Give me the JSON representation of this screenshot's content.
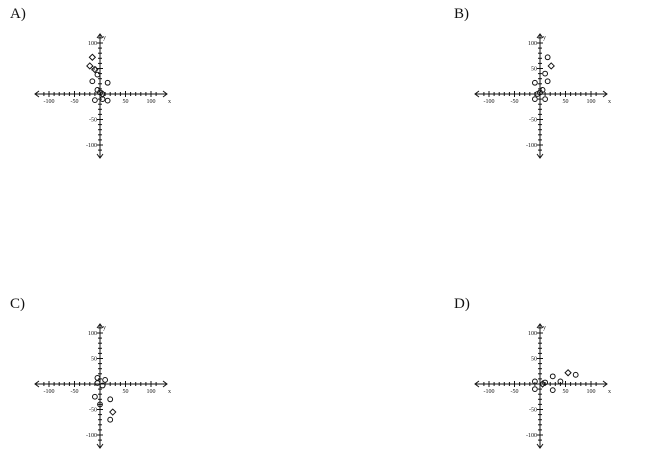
{
  "chart_data": [
    {
      "type": "scatter",
      "label": "A)",
      "xlabel": "x",
      "ylabel": "y",
      "xlim": [
        -120,
        120
      ],
      "ylim": [
        -120,
        120
      ],
      "tick_values": [
        -100,
        -50,
        50,
        100
      ],
      "points": [
        {
          "x": -15,
          "y": 72,
          "m": "diamond"
        },
        {
          "x": -20,
          "y": 55,
          "m": "diamond"
        },
        {
          "x": -10,
          "y": 48,
          "m": "diamond"
        },
        {
          "x": -5,
          "y": 38,
          "m": "circle"
        },
        {
          "x": -15,
          "y": 25,
          "m": "circle"
        },
        {
          "x": 15,
          "y": 22,
          "m": "circle"
        },
        {
          "x": -5,
          "y": 8,
          "m": "circle"
        },
        {
          "x": 0,
          "y": 3,
          "m": "circle"
        },
        {
          "x": 5,
          "y": 0,
          "m": "diamond"
        },
        {
          "x": -10,
          "y": -12,
          "m": "circle"
        },
        {
          "x": 5,
          "y": -10,
          "m": "circle"
        },
        {
          "x": 15,
          "y": -13,
          "m": "circle"
        }
      ]
    },
    {
      "type": "scatter",
      "label": "B)",
      "xlabel": "x",
      "ylabel": "y",
      "xlim": [
        -120,
        120
      ],
      "ylim": [
        -120,
        120
      ],
      "tick_values": [
        -100,
        -50,
        50,
        100
      ],
      "points": [
        {
          "x": 15,
          "y": 72,
          "m": "circle"
        },
        {
          "x": 22,
          "y": 55,
          "m": "diamond"
        },
        {
          "x": 10,
          "y": 40,
          "m": "circle"
        },
        {
          "x": 15,
          "y": 25,
          "m": "circle"
        },
        {
          "x": -10,
          "y": 22,
          "m": "circle"
        },
        {
          "x": 5,
          "y": 8,
          "m": "circle"
        },
        {
          "x": 0,
          "y": 3,
          "m": "circle"
        },
        {
          "x": -5,
          "y": 0,
          "m": "circle"
        },
        {
          "x": -10,
          "y": -10,
          "m": "circle"
        },
        {
          "x": 10,
          "y": -10,
          "m": "circle"
        }
      ]
    },
    {
      "type": "scatter",
      "label": "C)",
      "xlabel": "x",
      "ylabel": "y",
      "xlim": [
        -120,
        120
      ],
      "ylim": [
        -120,
        120
      ],
      "tick_values": [
        -100,
        -50,
        50,
        100
      ],
      "points": [
        {
          "x": -5,
          "y": 12,
          "m": "circle"
        },
        {
          "x": 10,
          "y": 8,
          "m": "circle"
        },
        {
          "x": -5,
          "y": 2,
          "m": "circle"
        },
        {
          "x": 5,
          "y": -3,
          "m": "circle"
        },
        {
          "x": -10,
          "y": -25,
          "m": "circle"
        },
        {
          "x": 20,
          "y": -30,
          "m": "circle"
        },
        {
          "x": 0,
          "y": -40,
          "m": "circle"
        },
        {
          "x": 25,
          "y": -55,
          "m": "diamond"
        },
        {
          "x": 20,
          "y": -70,
          "m": "circle"
        }
      ]
    },
    {
      "type": "scatter",
      "label": "D)",
      "xlabel": "x",
      "ylabel": "y",
      "xlim": [
        -120,
        120
      ],
      "ylim": [
        -120,
        120
      ],
      "tick_values": [
        -100,
        -50,
        50,
        100
      ],
      "points": [
        {
          "x": 55,
          "y": 22,
          "m": "diamond"
        },
        {
          "x": 70,
          "y": 18,
          "m": "circle"
        },
        {
          "x": 25,
          "y": 15,
          "m": "circle"
        },
        {
          "x": 40,
          "y": 5,
          "m": "circle"
        },
        {
          "x": -10,
          "y": 5,
          "m": "circle"
        },
        {
          "x": 10,
          "y": 3,
          "m": "circle"
        },
        {
          "x": 5,
          "y": 0,
          "m": "diamond"
        },
        {
          "x": -10,
          "y": -10,
          "m": "circle"
        },
        {
          "x": 25,
          "y": -12,
          "m": "circle"
        }
      ]
    }
  ]
}
